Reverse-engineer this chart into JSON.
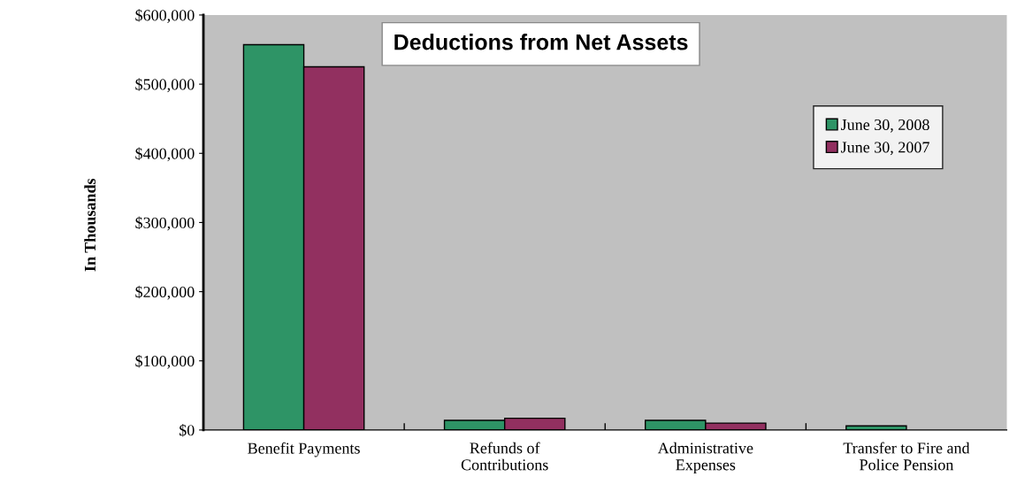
{
  "chart_data": {
    "type": "bar",
    "title": "Deductions from Net Assets",
    "ylabel": "In Thousands",
    "categories": [
      "Benefit Payments",
      "Refunds of\nContributions",
      "Administrative\nExpenses",
      "Transfer to Fire and\nPolice Pension"
    ],
    "series": [
      {
        "name": "June 30, 2008",
        "color": "#2e9466",
        "values": [
          557000,
          14000,
          14000,
          6000
        ]
      },
      {
        "name": "June 30, 2007",
        "color": "#923060",
        "values": [
          525000,
          17000,
          10000,
          null
        ]
      }
    ],
    "ylim": [
      0,
      600000
    ],
    "yticks": [
      {
        "value": 0,
        "label": "$0"
      },
      {
        "value": 100000,
        "label": "$100,000"
      },
      {
        "value": 200000,
        "label": "$200,000"
      },
      {
        "value": 300000,
        "label": "$300,000"
      },
      {
        "value": 400000,
        "label": "$400,000"
      },
      {
        "value": 500000,
        "label": "$500,000"
      },
      {
        "value": 600000,
        "label": "$600,000"
      }
    ],
    "grid": false,
    "legend": "top right"
  }
}
